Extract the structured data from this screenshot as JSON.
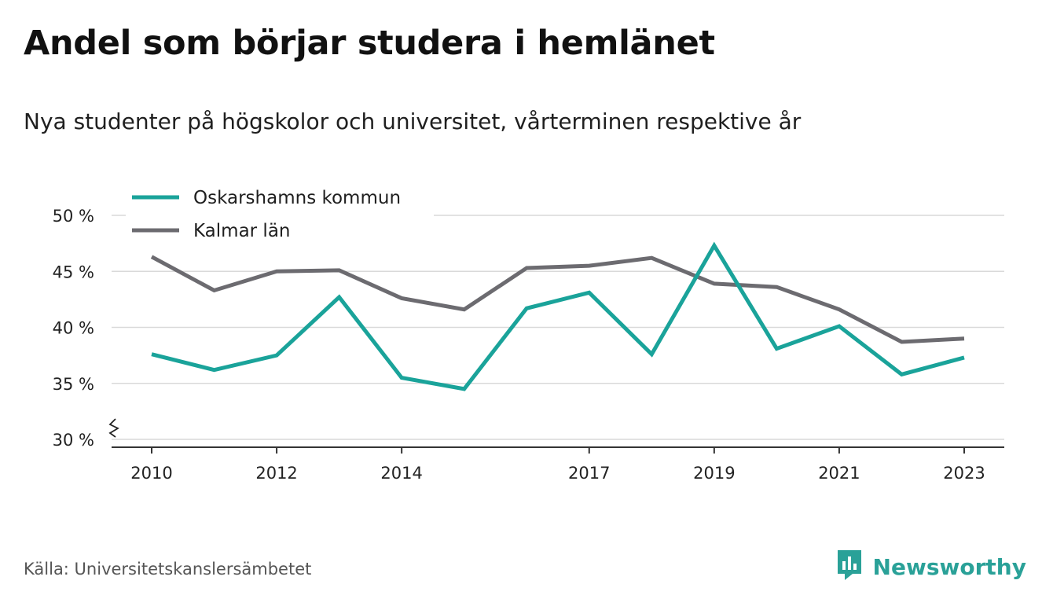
{
  "title": "Andel som börjar studera i hemlänet",
  "subtitle": "Nya studenter på högskolor och universitet, vårterminen respektive år",
  "source": "Källa: Universitetskanslersämbetet",
  "brand": {
    "name": "Newsworthy",
    "icon": "newsworthy-logo-icon",
    "color": "#2aa198"
  },
  "chart_data": {
    "type": "line",
    "title": "Andel som börjar studera i hemlänet",
    "subtitle": "Nya studenter på högskolor och universitet, vårterminen respektive år",
    "x": [
      2010,
      2011,
      2012,
      2013,
      2014,
      2015,
      2016,
      2017,
      2018,
      2019,
      2020,
      2021,
      2022,
      2023
    ],
    "x_tick_labels": [
      "2010",
      "2012",
      "2014",
      "2017",
      "2019",
      "2021",
      "2023"
    ],
    "series": [
      {
        "name": "Oskarshamns kommun",
        "color": "#1aa39a",
        "values": [
          37.6,
          36.2,
          37.5,
          42.7,
          35.5,
          34.5,
          41.7,
          43.1,
          37.6,
          47.3,
          38.1,
          40.1,
          35.8,
          37.3
        ]
      },
      {
        "name": "Kalmar län",
        "color": "#6c6b70",
        "values": [
          46.3,
          43.3,
          45.0,
          45.1,
          42.6,
          41.6,
          45.3,
          45.5,
          46.2,
          43.9,
          43.6,
          41.6,
          38.7,
          39.0
        ]
      }
    ],
    "y_ticks": [
      30,
      35,
      40,
      45,
      50
    ],
    "y_tick_labels": [
      "30 %",
      "35 %",
      "40 %",
      "45 %",
      "50 %"
    ],
    "ylim": [
      30,
      50
    ],
    "y_axis_break": true,
    "grid": true,
    "legend_position": "top-left"
  }
}
